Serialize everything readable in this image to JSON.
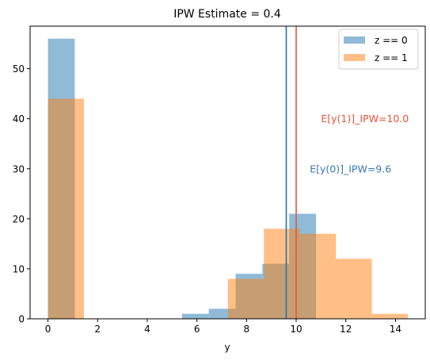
{
  "chart_data": {
    "type": "histogram",
    "title": "IPW Estimate = 0.4",
    "xlabel": "y",
    "ylabel": "",
    "xlim": [
      -0.72,
      15.2
    ],
    "ylim": [
      0,
      58.5
    ],
    "xticks": [
      0,
      2,
      4,
      6,
      8,
      10,
      12,
      14
    ],
    "yticks": [
      0,
      10,
      20,
      30,
      40,
      50
    ],
    "grid": false,
    "legend_position": "top-right",
    "series": [
      {
        "name": "z == 0",
        "color": "#1f77b4",
        "opacity": 0.5,
        "bins": [
          {
            "x0": 0.0,
            "x1": 1.08,
            "count": 56
          },
          {
            "x0": 5.4,
            "x1": 6.48,
            "count": 1
          },
          {
            "x0": 6.48,
            "x1": 7.56,
            "count": 2
          },
          {
            "x0": 7.56,
            "x1": 8.64,
            "count": 9
          },
          {
            "x0": 8.64,
            "x1": 9.72,
            "count": 11
          },
          {
            "x0": 9.72,
            "x1": 10.8,
            "count": 21
          }
        ]
      },
      {
        "name": "z == 1",
        "color": "#ff7f0e",
        "opacity": 0.5,
        "bins": [
          {
            "x0": 0.0,
            "x1": 1.45,
            "count": 44
          },
          {
            "x0": 7.25,
            "x1": 8.7,
            "count": 8
          },
          {
            "x0": 8.7,
            "x1": 10.15,
            "count": 18
          },
          {
            "x0": 10.15,
            "x1": 11.6,
            "count": 17
          },
          {
            "x0": 11.6,
            "x1": 13.05,
            "count": 12
          },
          {
            "x0": 13.05,
            "x1": 14.5,
            "count": 1
          }
        ]
      }
    ],
    "vlines": [
      {
        "x": 9.6,
        "color": "#1f77b4"
      },
      {
        "x": 10.0,
        "color": "#e8543a"
      }
    ],
    "annotations": [
      {
        "text": "E[y(1)]_IPW=10.0",
        "x": 11.0,
        "y": 40,
        "color": "#e8543a"
      },
      {
        "text": "E[y(0)]_IPW=9.6",
        "x": 10.55,
        "y": 30,
        "color": "#3a78b4"
      }
    ]
  }
}
